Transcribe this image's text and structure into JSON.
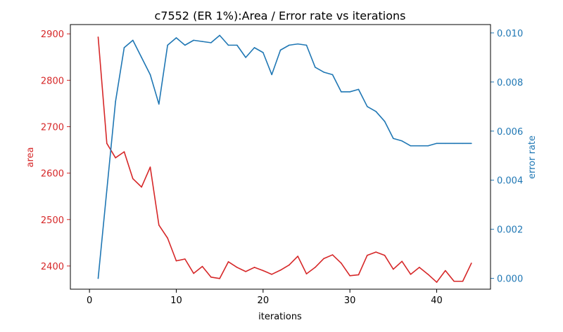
{
  "chart_data": {
    "type": "line",
    "title": "c7552 (ER 1%):Area / Error rate vs iterations",
    "xlabel": "iterations",
    "xlim": [
      -2.2,
      46.2
    ],
    "xticks": [
      0,
      10,
      20,
      30,
      40
    ],
    "y_left": {
      "label": "area",
      "color": "#d62728",
      "lim": [
        2350,
        2920
      ],
      "ticks": [
        2400,
        2500,
        2600,
        2700,
        2800,
        2900
      ]
    },
    "y_right": {
      "label": "error rate",
      "color": "#1f77b4",
      "lim": [
        -0.00044,
        0.01034
      ],
      "ticks": [
        "0.000",
        "0.002",
        "0.004",
        "0.006",
        "0.008",
        "0.010"
      ]
    },
    "series": [
      {
        "name": "area",
        "axis": "left",
        "x": [
          1,
          2,
          3,
          4,
          5,
          6,
          7,
          8,
          9,
          10,
          11,
          12,
          13,
          14,
          15,
          16,
          17,
          18,
          19,
          20,
          21,
          22,
          23,
          24,
          25,
          26,
          27,
          28,
          29,
          30,
          31,
          32,
          33,
          34,
          35,
          36,
          37,
          38,
          39,
          40,
          41,
          42,
          43,
          44
        ],
        "values": [
          2893,
          2664,
          2633,
          2646,
          2588,
          2570,
          2613,
          2488,
          2460,
          2411,
          2415,
          2384,
          2399,
          2376,
          2373,
          2409,
          2397,
          2388,
          2397,
          2390,
          2382,
          2391,
          2402,
          2421,
          2383,
          2397,
          2416,
          2424,
          2406,
          2379,
          2381,
          2423,
          2430,
          2423,
          2393,
          2410,
          2382,
          2397,
          2382,
          2365,
          2390,
          2367,
          2367,
          2406
        ]
      },
      {
        "name": "error rate",
        "axis": "right",
        "x": [
          1,
          2,
          3,
          4,
          5,
          6,
          7,
          8,
          9,
          10,
          11,
          12,
          13,
          14,
          15,
          16,
          17,
          18,
          19,
          20,
          21,
          22,
          23,
          24,
          25,
          26,
          27,
          28,
          29,
          30,
          31,
          32,
          33,
          34,
          35,
          36,
          37,
          38,
          39,
          40,
          41,
          42,
          43,
          44
        ],
        "values": [
          0.0,
          0.0036,
          0.0072,
          0.0094,
          0.0097,
          0.009,
          0.0083,
          0.0071,
          0.0095,
          0.0098,
          0.0095,
          0.0097,
          0.00965,
          0.0096,
          0.0099,
          0.0095,
          0.0095,
          0.009,
          0.0094,
          0.0092,
          0.0083,
          0.0093,
          0.0095,
          0.00955,
          0.0095,
          0.0086,
          0.0084,
          0.0083,
          0.0076,
          0.0076,
          0.0077,
          0.007,
          0.0068,
          0.0064,
          0.0057,
          0.0056,
          0.0054,
          0.0054,
          0.0054,
          0.0055,
          0.0055,
          0.0055,
          0.0055,
          0.0055
        ]
      }
    ]
  }
}
